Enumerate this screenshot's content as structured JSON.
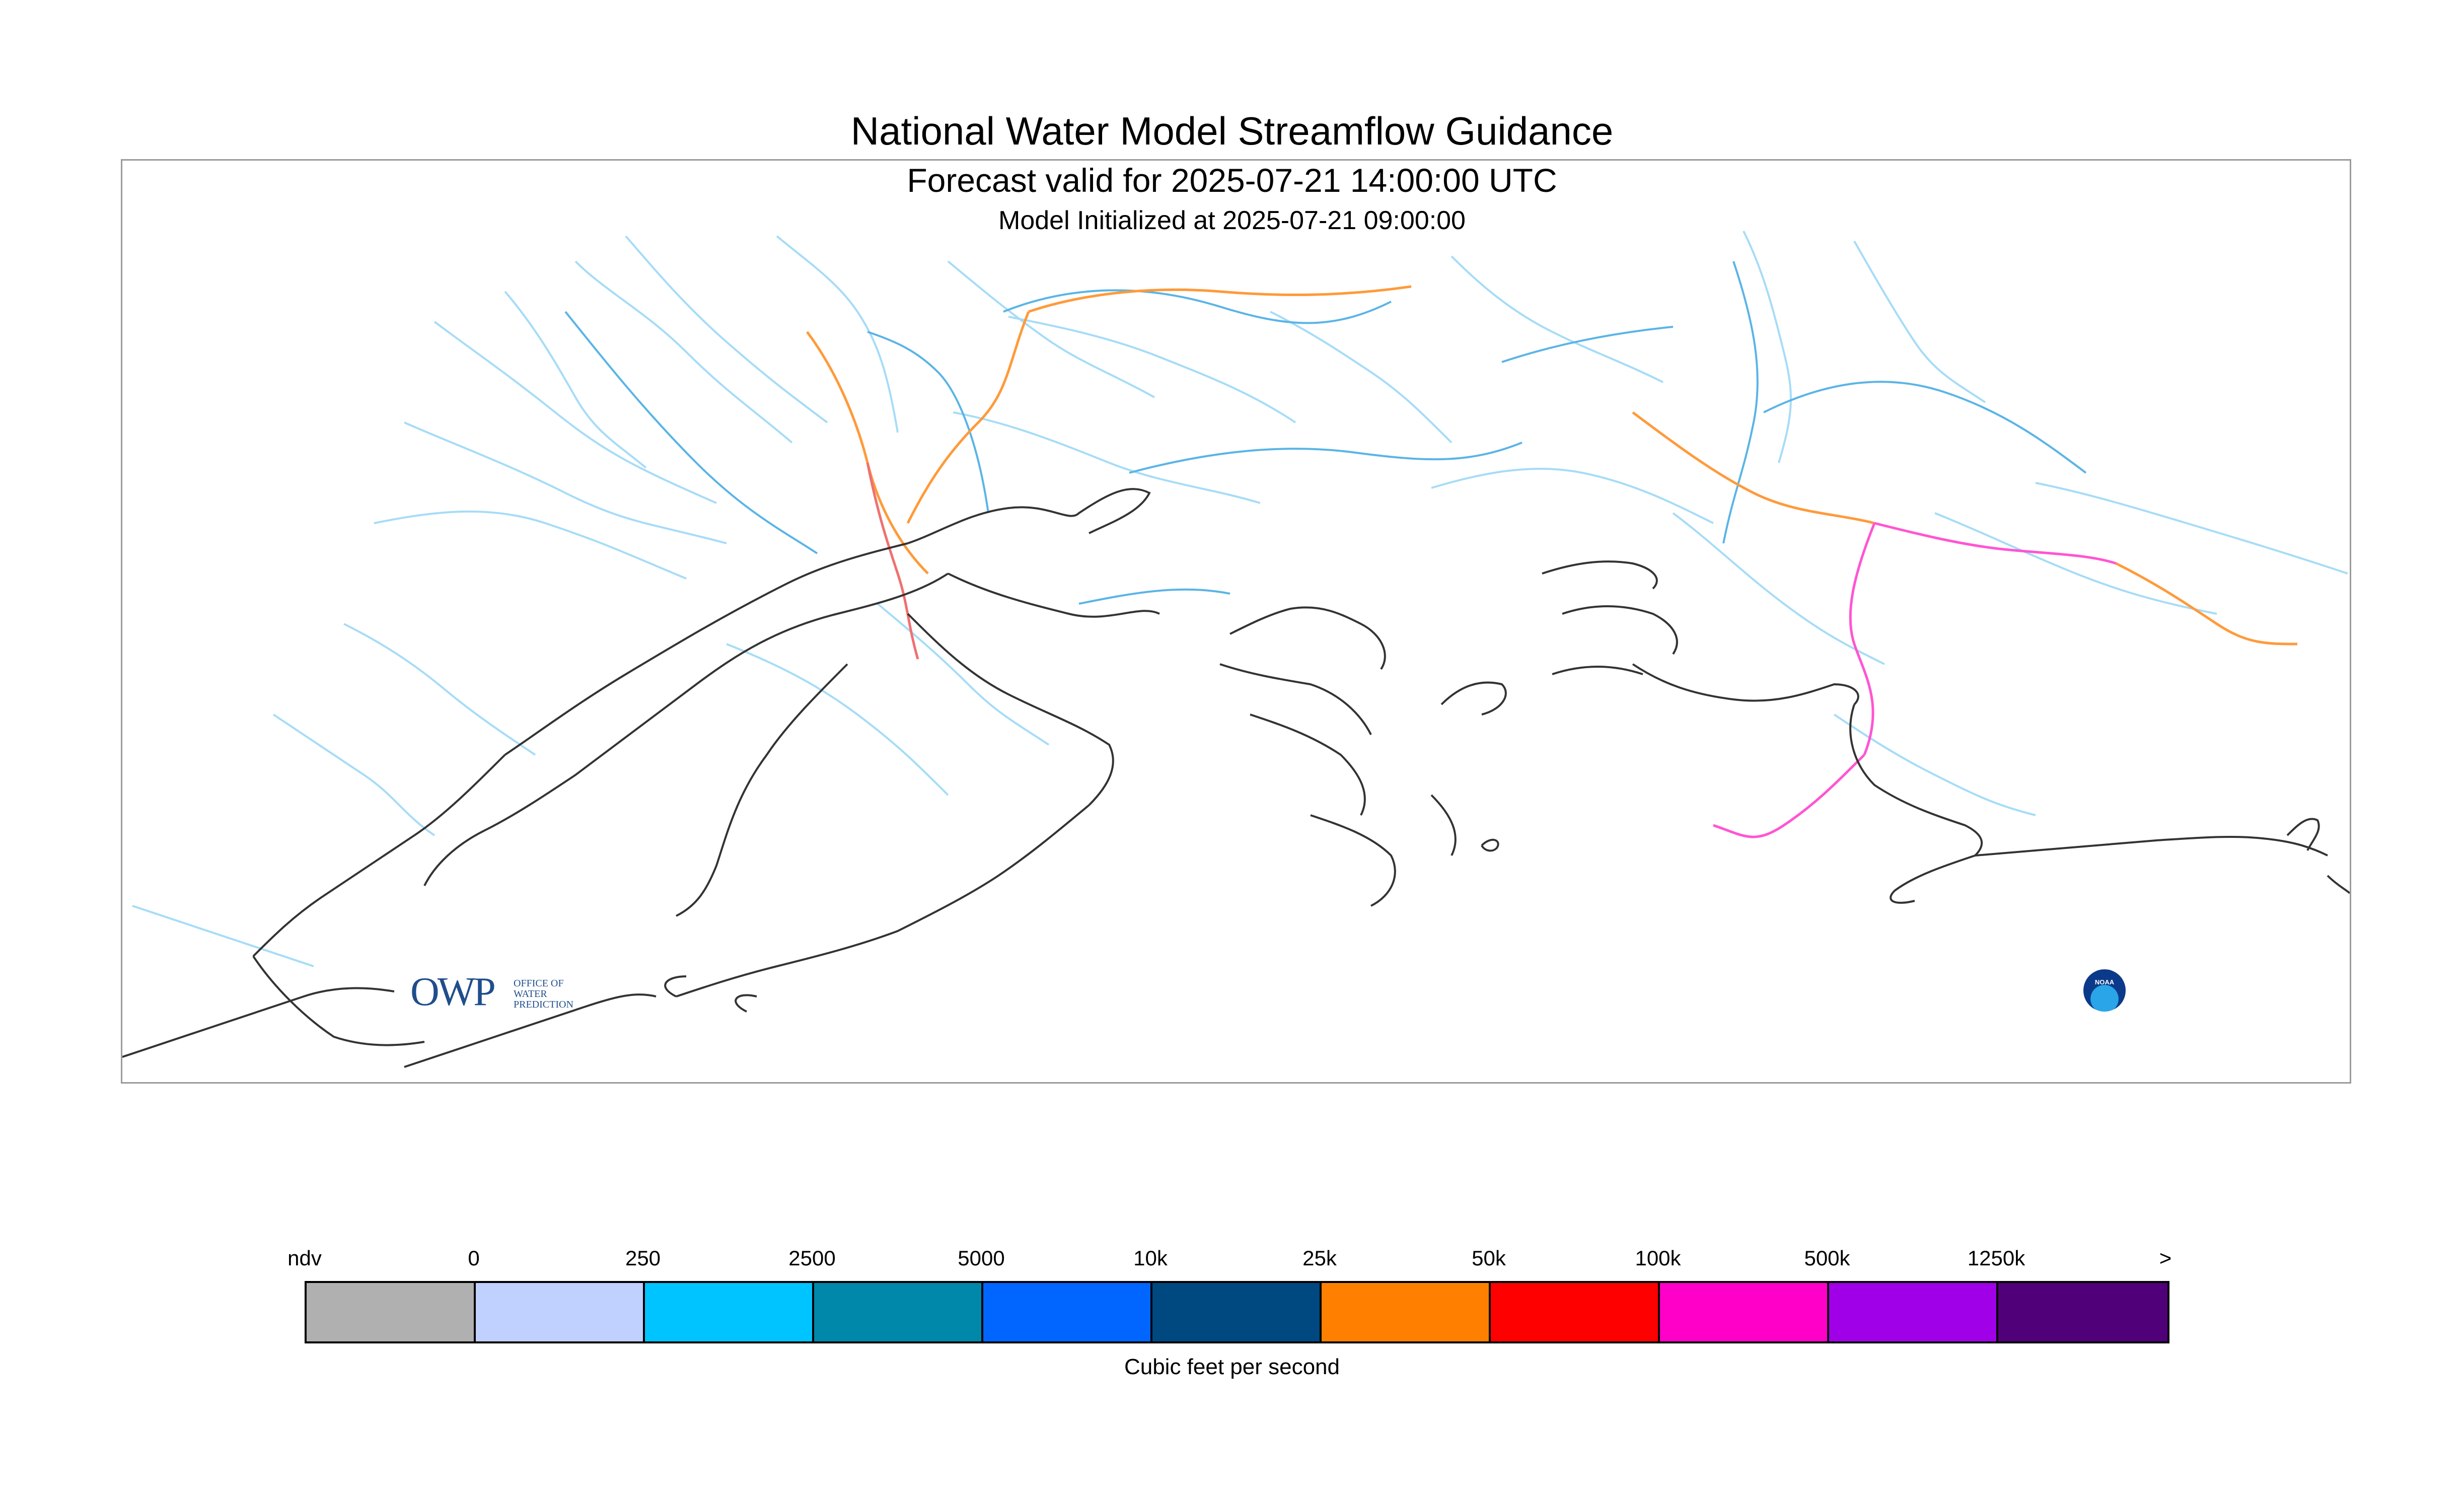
{
  "titles": {
    "main": "National Water Model Streamflow Guidance",
    "forecast": "Forecast valid for 2025-07-21 14:00:00 UTC",
    "initialized": "Model Initialized at 2025-07-21 09:00:00"
  },
  "logos": {
    "owp_mark": "OWP",
    "owp_text": [
      "OFFICE OF",
      "WATER",
      "PREDICTION"
    ],
    "noaa_text": "NOAA"
  },
  "legend": {
    "ticks": [
      "ndv",
      "0",
      "250",
      "2500",
      "5000",
      "10k",
      "25k",
      "50k",
      "100k",
      "500k",
      "1250k",
      ">"
    ],
    "colors": [
      "#b0b0b0",
      "#c0d0ff",
      "#00c4ff",
      "#0088aa",
      "#0066ff",
      "#004880",
      "#ff8000",
      "#ff0000",
      "#ff00c8",
      "#a000e8",
      "#500078"
    ],
    "units": "Cubic feet per second"
  },
  "map": {
    "coastline_color": "#333333",
    "river_colors": {
      "low": "#9fd8f5",
      "mid": "#5ab4e6",
      "orange": "#ff9a3a",
      "red": "#f07070",
      "pink": "#ff55d2"
    }
  }
}
